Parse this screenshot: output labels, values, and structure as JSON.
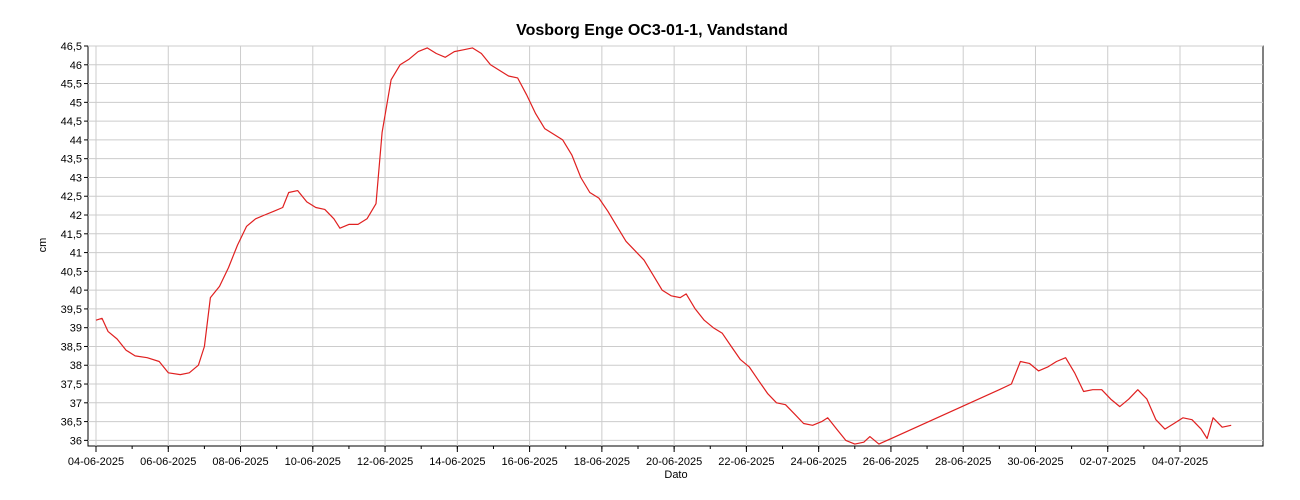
{
  "chart_data": {
    "type": "line",
    "title": "Vosborg Enge OC3-01-1, Vandstand",
    "xlabel": "Dato",
    "ylabel": "cm",
    "ylim": [
      35.85,
      46.5
    ],
    "xlim": [
      "2025-06-04",
      "2025-07-04"
    ],
    "grid": true,
    "y_ticks": [
      "36",
      "36,5",
      "37",
      "37,5",
      "38",
      "38,5",
      "39",
      "39,5",
      "40",
      "40,5",
      "41",
      "41,5",
      "42",
      "42,5",
      "43",
      "43,5",
      "44",
      "44,5",
      "45",
      "45,5",
      "46",
      "46,5"
    ],
    "x_ticks": [
      "04-06-2025",
      "06-06-2025",
      "08-06-2025",
      "10-06-2025",
      "12-06-2025",
      "14-06-2025",
      "16-06-2025",
      "18-06-2025",
      "20-06-2025",
      "22-06-2025",
      "24-06-2025",
      "26-06-2025",
      "28-06-2025",
      "30-06-2025",
      "02-07-2025",
      "04-07-2025"
    ],
    "series": [
      {
        "color": "#e02020",
        "points": [
          [
            "2025-06-04 00:00",
            39.2
          ],
          [
            "2025-06-04 04:00",
            39.25
          ],
          [
            "2025-06-04 08:00",
            38.9
          ],
          [
            "2025-06-04 14:00",
            38.7
          ],
          [
            "2025-06-04 20:00",
            38.4
          ],
          [
            "2025-06-05 02:00",
            38.25
          ],
          [
            "2025-06-05 10:00",
            38.2
          ],
          [
            "2025-06-05 18:00",
            38.1
          ],
          [
            "2025-06-06 00:00",
            37.8
          ],
          [
            "2025-06-06 08:00",
            37.75
          ],
          [
            "2025-06-06 14:00",
            37.8
          ],
          [
            "2025-06-06 20:00",
            38.0
          ],
          [
            "2025-06-07 00:00",
            38.5
          ],
          [
            "2025-06-07 04:00",
            39.8
          ],
          [
            "2025-06-07 10:00",
            40.1
          ],
          [
            "2025-06-07 16:00",
            40.6
          ],
          [
            "2025-06-07 22:00",
            41.2
          ],
          [
            "2025-06-08 04:00",
            41.7
          ],
          [
            "2025-06-08 10:00",
            41.9
          ],
          [
            "2025-06-08 16:00",
            42.0
          ],
          [
            "2025-06-08 22:00",
            42.1
          ],
          [
            "2025-06-09 04:00",
            42.2
          ],
          [
            "2025-06-09 08:00",
            42.6
          ],
          [
            "2025-06-09 14:00",
            42.65
          ],
          [
            "2025-06-09 20:00",
            42.35
          ],
          [
            "2025-06-10 02:00",
            42.2
          ],
          [
            "2025-06-10 08:00",
            42.15
          ],
          [
            "2025-06-10 14:00",
            41.9
          ],
          [
            "2025-06-10 18:00",
            41.65
          ],
          [
            "2025-06-11 00:00",
            41.75
          ],
          [
            "2025-06-11 06:00",
            41.75
          ],
          [
            "2025-06-11 12:00",
            41.9
          ],
          [
            "2025-06-11 18:00",
            42.3
          ],
          [
            "2025-06-11 22:00",
            44.2
          ],
          [
            "2025-06-12 04:00",
            45.6
          ],
          [
            "2025-06-12 10:00",
            46.0
          ],
          [
            "2025-06-12 16:00",
            46.15
          ],
          [
            "2025-06-12 22:00",
            46.35
          ],
          [
            "2025-06-13 04:00",
            46.45
          ],
          [
            "2025-06-13 10:00",
            46.3
          ],
          [
            "2025-06-13 16:00",
            46.2
          ],
          [
            "2025-06-13 22:00",
            46.35
          ],
          [
            "2025-06-14 04:00",
            46.4
          ],
          [
            "2025-06-14 10:00",
            46.45
          ],
          [
            "2025-06-14 16:00",
            46.3
          ],
          [
            "2025-06-14 22:00",
            46.0
          ],
          [
            "2025-06-15 04:00",
            45.85
          ],
          [
            "2025-06-15 10:00",
            45.7
          ],
          [
            "2025-06-15 16:00",
            45.65
          ],
          [
            "2025-06-15 22:00",
            45.2
          ],
          [
            "2025-06-16 04:00",
            44.7
          ],
          [
            "2025-06-16 10:00",
            44.3
          ],
          [
            "2025-06-16 16:00",
            44.15
          ],
          [
            "2025-06-16 22:00",
            44.0
          ],
          [
            "2025-06-17 04:00",
            43.6
          ],
          [
            "2025-06-17 10:00",
            43.0
          ],
          [
            "2025-06-17 16:00",
            42.6
          ],
          [
            "2025-06-17 22:00",
            42.45
          ],
          [
            "2025-06-18 04:00",
            42.1
          ],
          [
            "2025-06-18 10:00",
            41.7
          ],
          [
            "2025-06-18 16:00",
            41.3
          ],
          [
            "2025-06-18 22:00",
            41.05
          ],
          [
            "2025-06-19 04:00",
            40.8
          ],
          [
            "2025-06-19 10:00",
            40.4
          ],
          [
            "2025-06-19 16:00",
            40.0
          ],
          [
            "2025-06-19 22:00",
            39.85
          ],
          [
            "2025-06-20 04:00",
            39.8
          ],
          [
            "2025-06-20 08:00",
            39.9
          ],
          [
            "2025-06-20 14:00",
            39.5
          ],
          [
            "2025-06-20 20:00",
            39.2
          ],
          [
            "2025-06-21 02:00",
            39.0
          ],
          [
            "2025-06-21 08:00",
            38.85
          ],
          [
            "2025-06-21 14:00",
            38.5
          ],
          [
            "2025-06-21 20:00",
            38.15
          ],
          [
            "2025-06-22 02:00",
            37.95
          ],
          [
            "2025-06-22 08:00",
            37.6
          ],
          [
            "2025-06-22 14:00",
            37.25
          ],
          [
            "2025-06-22 20:00",
            37.0
          ],
          [
            "2025-06-23 02:00",
            36.95
          ],
          [
            "2025-06-23 08:00",
            36.7
          ],
          [
            "2025-06-23 14:00",
            36.45
          ],
          [
            "2025-06-23 20:00",
            36.4
          ],
          [
            "2025-06-24 02:00",
            36.5
          ],
          [
            "2025-06-24 06:00",
            36.6
          ],
          [
            "2025-06-24 12:00",
            36.3
          ],
          [
            "2025-06-24 18:00",
            36.0
          ],
          [
            "2025-06-25 00:00",
            35.9
          ],
          [
            "2025-06-25 06:00",
            35.95
          ],
          [
            "2025-06-25 10:00",
            36.1
          ],
          [
            "2025-06-25 16:00",
            35.9
          ],
          [
            "2025-06-29 00:00",
            37.35
          ],
          [
            "2025-06-29 08:00",
            37.5
          ],
          [
            "2025-06-29 14:00",
            38.1
          ],
          [
            "2025-06-29 20:00",
            38.05
          ],
          [
            "2025-06-30 02:00",
            37.85
          ],
          [
            "2025-06-30 08:00",
            37.95
          ],
          [
            "2025-06-30 14:00",
            38.1
          ],
          [
            "2025-06-30 20:00",
            38.2
          ],
          [
            "2025-07-01 02:00",
            37.8
          ],
          [
            "2025-07-01 08:00",
            37.3
          ],
          [
            "2025-07-01 14:00",
            37.35
          ],
          [
            "2025-07-01 20:00",
            37.35
          ],
          [
            "2025-07-02 02:00",
            37.1
          ],
          [
            "2025-07-02 08:00",
            36.9
          ],
          [
            "2025-07-02 14:00",
            37.1
          ],
          [
            "2025-07-02 20:00",
            37.35
          ],
          [
            "2025-07-03 02:00",
            37.1
          ],
          [
            "2025-07-03 08:00",
            36.55
          ],
          [
            "2025-07-03 14:00",
            36.3
          ],
          [
            "2025-07-03 20:00",
            36.45
          ],
          [
            "2025-07-04 02:00",
            36.6
          ],
          [
            "2025-07-04 08:00",
            36.55
          ],
          [
            "2025-07-04 14:00",
            36.3
          ],
          [
            "2025-07-04 18:00",
            36.05
          ],
          [
            "2025-07-04 22:00",
            36.6
          ],
          [
            "2025-07-05 04:00",
            36.35
          ],
          [
            "2025-07-05 10:00",
            36.4
          ]
        ]
      }
    ]
  }
}
